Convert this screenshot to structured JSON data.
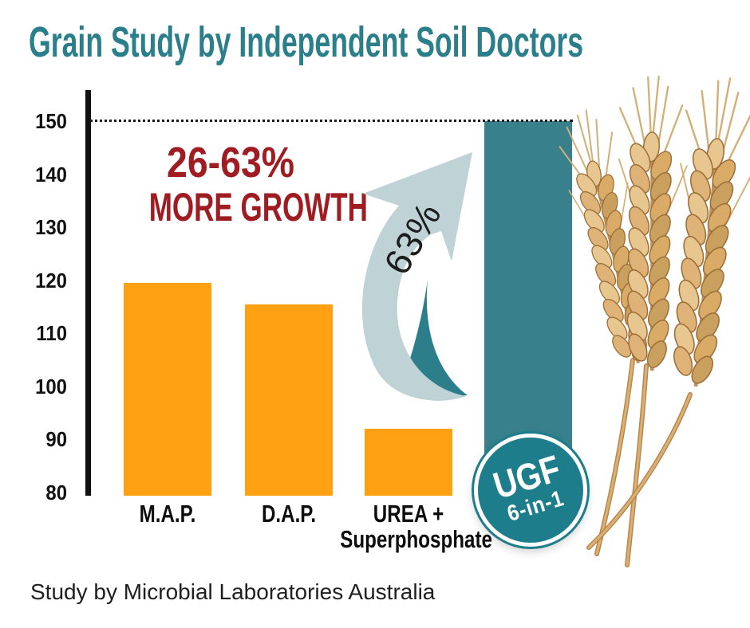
{
  "header": {
    "title": "Grain Study by Independent Soil Doctors"
  },
  "footer": {
    "text": "Study by Microbial Laboratories Australia"
  },
  "annotation": {
    "range_line1": "26-63%",
    "range_line2": "MORE GROWTH",
    "arrow_percent": "63%"
  },
  "badge": {
    "product": "UGF",
    "variant": "6-in-1"
  },
  "colors": {
    "title_teal": "#2B7F8B",
    "accent_red": "#9E1C22",
    "bar_orange": "#FFA113",
    "bar_teal": "#37808C",
    "badge_teal": "#1D7D8A",
    "arrow_light": "#BFD2D6",
    "arrow_dark": "#2B7E8A",
    "axis_black": "#111111",
    "wheat_tan": "#DDB172"
  },
  "chart_data": {
    "type": "bar",
    "title": "Grain Study by Independent Soil Doctors",
    "categories": [
      "M.A.P.",
      "D.A.P.",
      "UREA + Superphosphate",
      "UGF 6-in-1"
    ],
    "values": [
      119.5,
      115.5,
      92,
      150
    ],
    "bar_colors": [
      "#FFA113",
      "#FFA113",
      "#FFA113",
      "#37808C"
    ],
    "ylim": [
      80,
      150
    ],
    "yticks": [
      80,
      90,
      100,
      110,
      120,
      130,
      140,
      150
    ],
    "x_label_shown": [
      true,
      true,
      true,
      false
    ],
    "reference_line": {
      "value": 150,
      "style": "dotted"
    },
    "grid": false,
    "legend": false,
    "annotations": [
      {
        "text": "26-63% MORE GROWTH",
        "color": "#9E1C22",
        "position": "upper-left"
      },
      {
        "text": "63%",
        "rotation_deg": -60,
        "position": "on-arrow"
      }
    ]
  }
}
